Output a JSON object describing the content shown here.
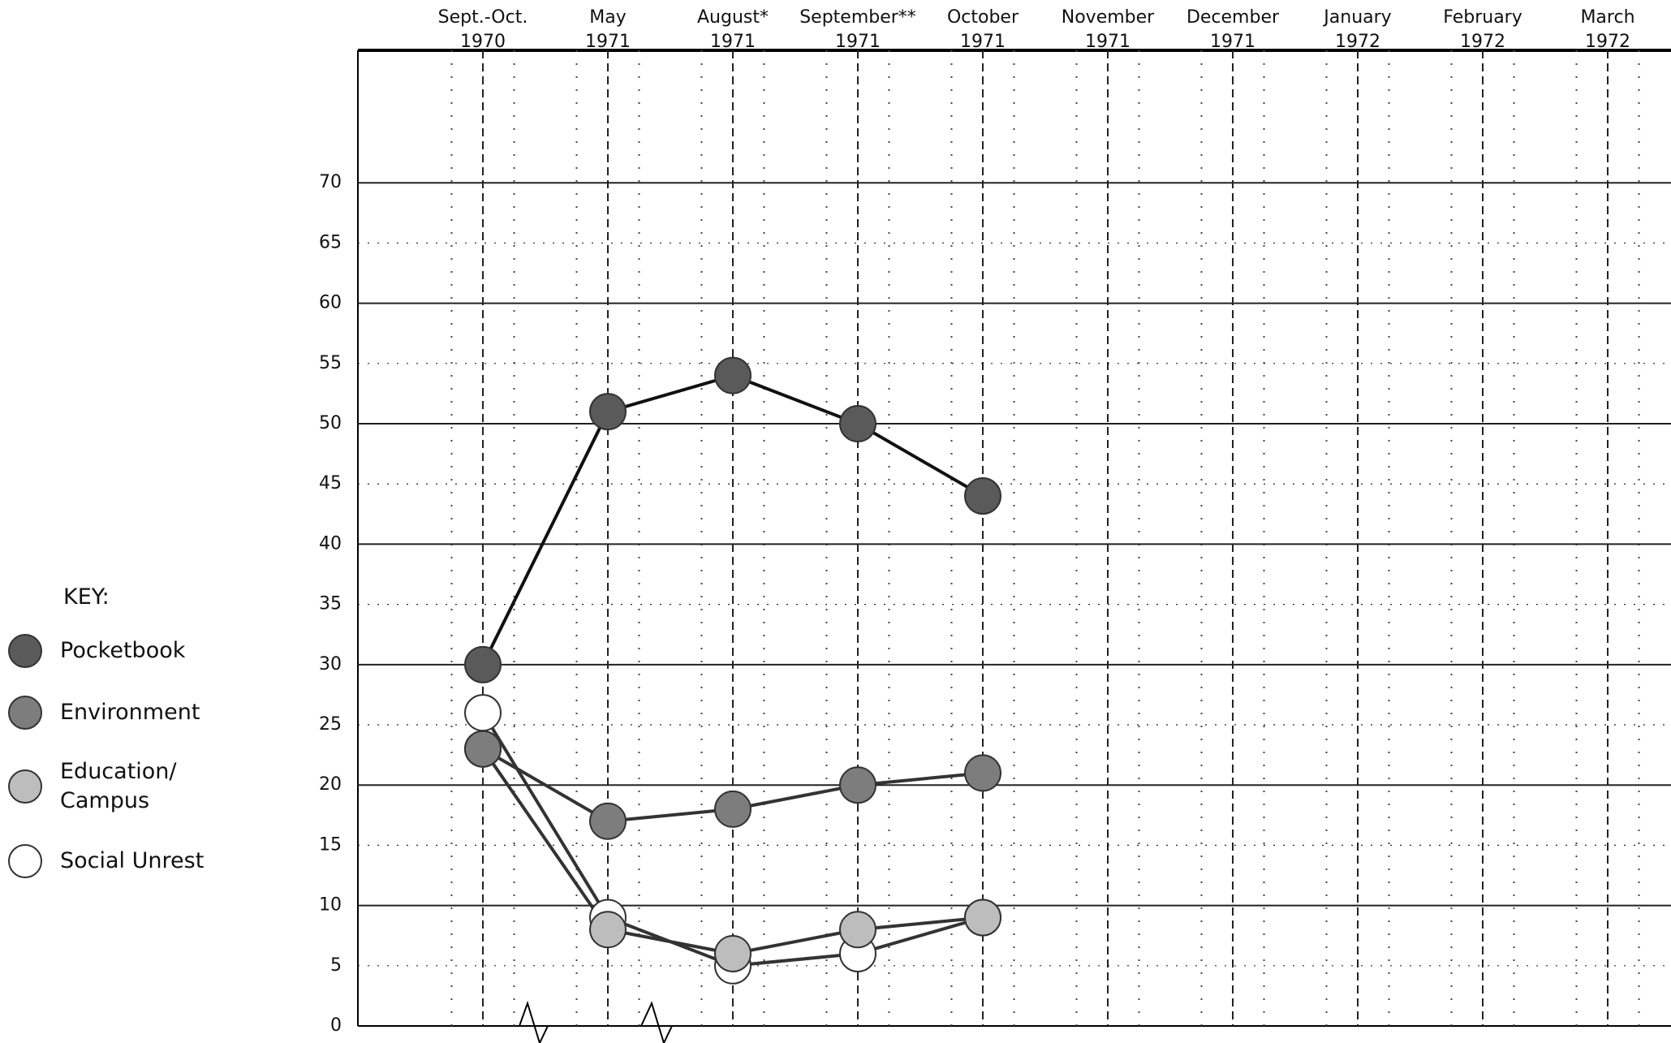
{
  "chart_data": {
    "type": "line",
    "categories": [
      [
        "Sept.-Oct.",
        "1970"
      ],
      [
        "May",
        "1971"
      ],
      [
        "August*",
        "1971"
      ],
      [
        "September**",
        "1971"
      ],
      [
        "October",
        "1971"
      ],
      [
        "November",
        "1971"
      ],
      [
        "December",
        "1971"
      ],
      [
        "January",
        "1972"
      ],
      [
        "February",
        "1972"
      ],
      [
        "March",
        "1972"
      ]
    ],
    "series": [
      {
        "name": "Pocketbook",
        "color": "#5a5a5a",
        "values": [
          30,
          51,
          54,
          50,
          44,
          null,
          null,
          null,
          null,
          null
        ]
      },
      {
        "name": "Environment",
        "color": "#7d7d7d",
        "values": [
          23,
          17,
          18,
          20,
          21,
          null,
          null,
          null,
          null,
          null
        ]
      },
      {
        "name": "Education/ Campus",
        "color": "#bdbdbd",
        "values": [
          23,
          8,
          6,
          8,
          9,
          null,
          null,
          null,
          null,
          null
        ]
      },
      {
        "name": "Social Unrest",
        "color": "#ffffff",
        "values": [
          26,
          9,
          5,
          6,
          9,
          null,
          null,
          null,
          null,
          null
        ]
      }
    ],
    "legend_title": "KEY:",
    "ylim": [
      0,
      81
    ],
    "yticks": [
      0,
      5,
      10,
      15,
      20,
      25,
      30,
      35,
      40,
      45,
      50,
      55,
      60,
      65,
      70
    ],
    "grid": true
  }
}
